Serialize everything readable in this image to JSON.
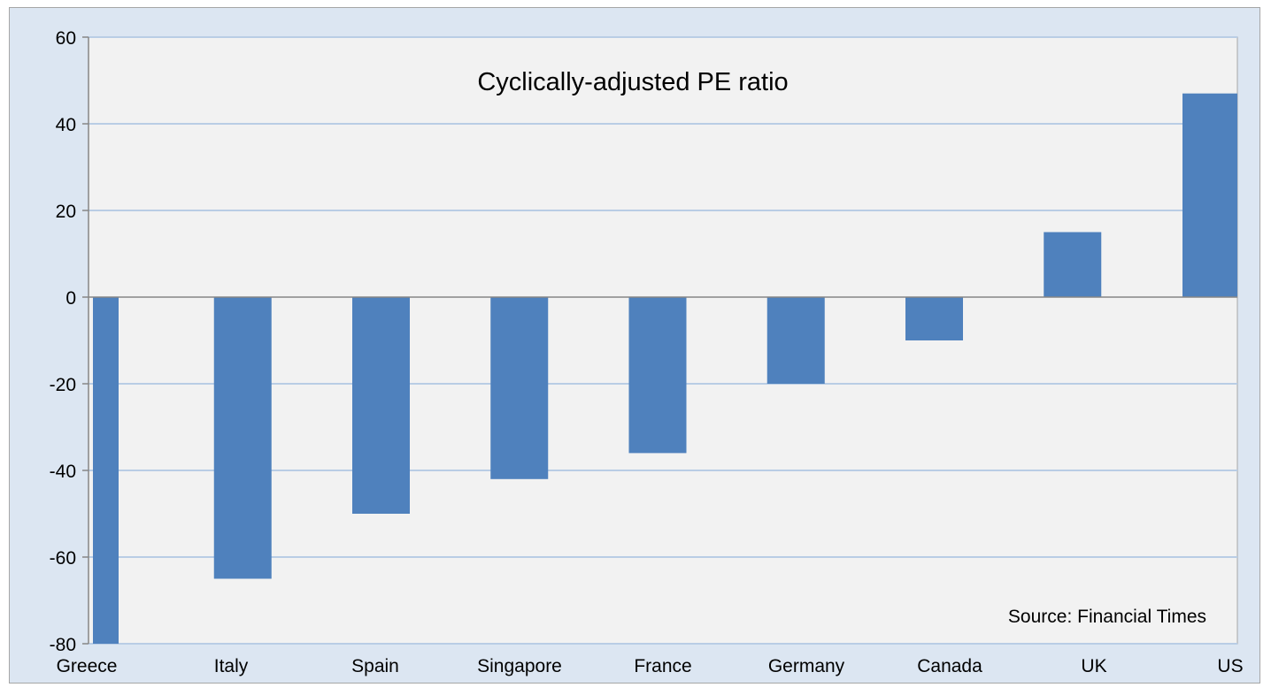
{
  "chart_data": {
    "type": "bar",
    "title": "Cyclically-adjusted PE ratio",
    "annotation": "Source: Financial Times",
    "categories": [
      "Greece",
      "Italy",
      "Spain",
      "Singapore",
      "France",
      "Germany",
      "Canada",
      "UK",
      "US"
    ],
    "values": [
      -80,
      -65,
      -50,
      -42,
      -36,
      -20,
      -10,
      15,
      47
    ],
    "ylim": [
      -80,
      60
    ],
    "yticks": [
      60,
      40,
      20,
      0,
      -20,
      -40,
      -60,
      -80
    ],
    "xlabel": "",
    "ylabel": "",
    "grid": true,
    "bar_color": "#4f81bd",
    "plot_background": "#f2f2f2",
    "frame_background": "#dce6f2",
    "grid_color": "#b9cde5"
  }
}
